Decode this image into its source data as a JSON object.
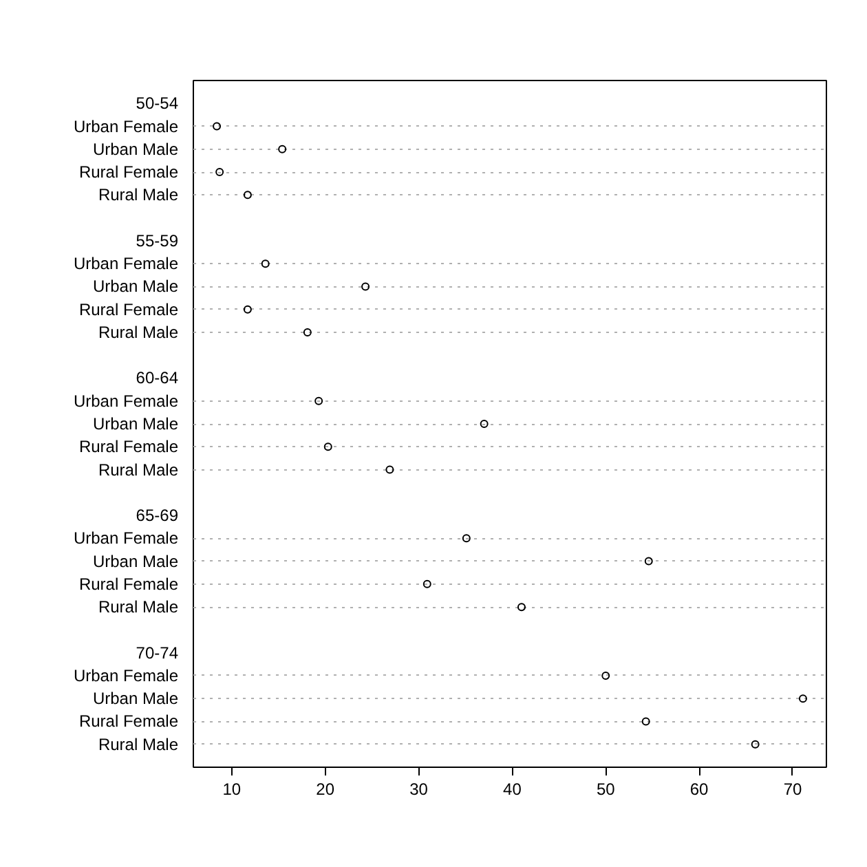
{
  "chart_data": {
    "type": "scatter",
    "orientation": "horizontal",
    "categories": [
      "50-54",
      "Urban Female",
      "Urban Male",
      "Rural Female",
      "Rural Male",
      null,
      "55-59",
      "Urban Female",
      "Urban Male",
      "Rural Female",
      "Rural Male",
      null,
      "60-64",
      "Urban Female",
      "Urban Male",
      "Rural Female",
      "Rural Male",
      null,
      "65-69",
      "Urban Female",
      "Urban Male",
      "Rural Female",
      "Rural Male",
      null,
      "70-74",
      "Urban Female",
      "Urban Male",
      "Rural Female",
      "Rural Male"
    ],
    "values": [
      null,
      8.4,
      15.4,
      8.7,
      11.7,
      null,
      null,
      13.6,
      24.3,
      11.7,
      18.1,
      null,
      null,
      19.3,
      37.0,
      20.3,
      26.9,
      null,
      null,
      35.1,
      54.6,
      30.9,
      41.0,
      null,
      null,
      50.0,
      71.1,
      54.3,
      66.0
    ],
    "color": "#000000",
    "marker": "circle",
    "grid": "y",
    "line_style": "dotted",
    "xlim": [
      5.892,
      73.608
    ],
    "xticks": [
      10,
      20,
      30,
      40,
      50,
      60,
      70
    ]
  }
}
